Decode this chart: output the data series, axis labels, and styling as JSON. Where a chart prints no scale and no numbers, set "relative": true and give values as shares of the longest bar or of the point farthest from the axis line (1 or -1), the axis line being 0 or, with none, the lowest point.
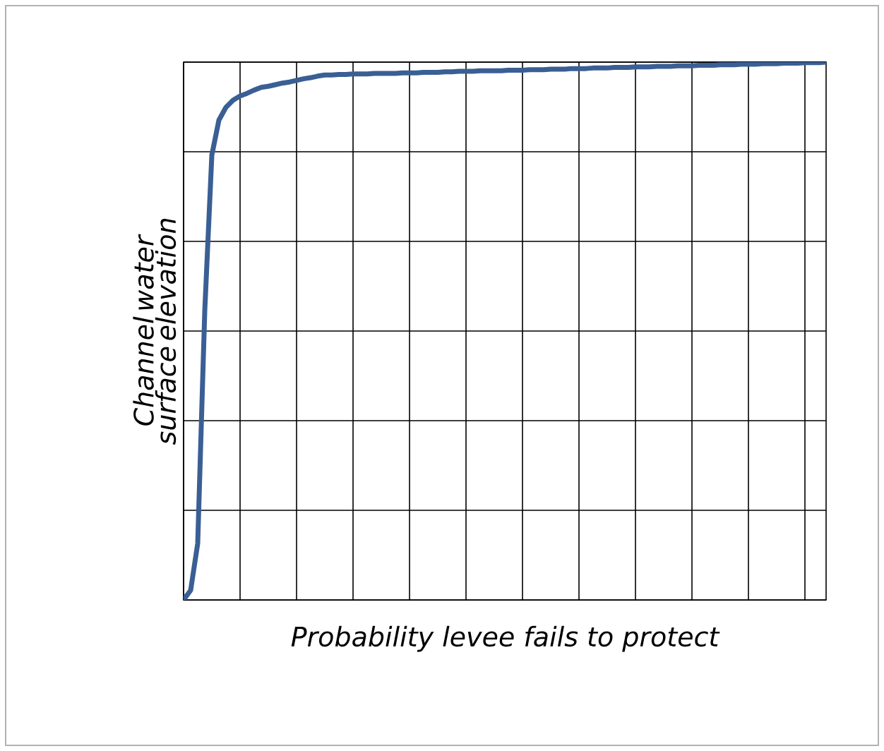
{
  "chart_data": {
    "type": "line",
    "relative": true,
    "xlabel": "Probability levee fails to protect",
    "ylabel": "Channel water surface elevation",
    "grid": true,
    "color": "#3a5f94",
    "categories": [
      null,
      null,
      null,
      null,
      null,
      null,
      null,
      null,
      null,
      null,
      null,
      null,
      null,
      null,
      null,
      null,
      null,
      null,
      null,
      null,
      null,
      null,
      null,
      null,
      null,
      null,
      null,
      null,
      null,
      null,
      null,
      null,
      null,
      null,
      null,
      null,
      null,
      null,
      null,
      null,
      null,
      null,
      null,
      null,
      null,
      null,
      null,
      null,
      null,
      null,
      null,
      null,
      null,
      null,
      null,
      null,
      null,
      null,
      null,
      null,
      null,
      null,
      null,
      null,
      null,
      null,
      null,
      null,
      null,
      null,
      null,
      null,
      null,
      null,
      null,
      null,
      null,
      null,
      null,
      null,
      null,
      null,
      null,
      null,
      null,
      null,
      null,
      null,
      null,
      null,
      null,
      null
    ],
    "values": [
      0,
      0.018,
      0.105,
      0.538,
      0.827,
      0.892,
      0.916,
      0.929,
      0.937,
      0.942,
      0.948,
      0.953,
      0.955,
      0.958,
      0.961,
      0.963,
      0.966,
      0.969,
      0.971,
      0.974,
      0.976,
      0.976,
      0.977,
      0.977,
      0.978,
      0.978,
      0.978,
      0.979,
      0.979,
      0.979,
      0.979,
      0.98,
      0.98,
      0.98,
      0.981,
      0.981,
      0.981,
      0.982,
      0.982,
      0.983,
      0.983,
      0.983,
      0.984,
      0.984,
      0.984,
      0.984,
      0.985,
      0.985,
      0.985,
      0.986,
      0.986,
      0.986,
      0.987,
      0.987,
      0.987,
      0.988,
      0.988,
      0.988,
      0.989,
      0.989,
      0.989,
      0.99,
      0.99,
      0.99,
      0.991,
      0.991,
      0.991,
      0.992,
      0.992,
      0.992,
      0.993,
      0.993,
      0.993,
      0.994,
      0.994,
      0.994,
      0.995,
      0.995,
      0.995,
      0.996,
      0.996,
      0.996,
      0.997,
      0.997,
      0.997,
      0.998,
      0.998,
      0.998,
      0.999,
      0.999,
      0.999,
      1.0
    ]
  }
}
